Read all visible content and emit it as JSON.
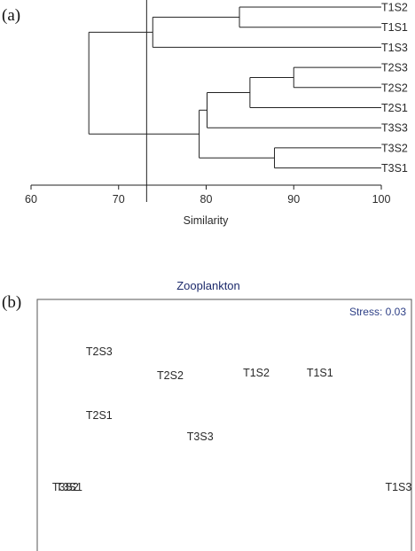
{
  "colors": {
    "ink": "#222222",
    "mds_title": "#1c2a6b",
    "stress": "#2d3f86"
  },
  "chart_data": [
    {
      "type": "dendrogram",
      "panel_label": "(a)",
      "xlabel": "Similarity",
      "xlim": [
        60,
        100
      ],
      "xticks": [
        "60",
        "70",
        "80",
        "90",
        "100"
      ],
      "cut_similarity": 73.2,
      "leaves": [
        "T1S2",
        "T1S1",
        "T1S3",
        "T2S3",
        "T2S2",
        "T2S1",
        "T3S3",
        "T3S2",
        "T3S1"
      ],
      "merges": [
        {
          "a": "T1S2",
          "b": "T1S1",
          "similarity": 83.8,
          "id": "c1"
        },
        {
          "a": "c1",
          "b": "T1S3",
          "similarity": 73.9,
          "id": "c2"
        },
        {
          "a": "T2S3",
          "b": "T2S2",
          "similarity": 90.0,
          "id": "c3"
        },
        {
          "a": "c3",
          "b": "T2S1",
          "similarity": 85.0,
          "id": "c4"
        },
        {
          "a": "c4",
          "b": "T3S3",
          "similarity": 80.1,
          "id": "c5"
        },
        {
          "a": "T3S2",
          "b": "T3S1",
          "similarity": 87.8,
          "id": "c6"
        },
        {
          "a": "c5",
          "b": "c6",
          "similarity": 79.2,
          "id": "c7"
        },
        {
          "a": "c2",
          "b": "c7",
          "similarity": 66.6,
          "id": "c8"
        }
      ]
    },
    {
      "type": "scatter",
      "panel_label": "(b)",
      "title": "Zooplankton",
      "stress": "Stress: 0.03",
      "points": [
        {
          "label": "T2S3",
          "x": 0.13,
          "y": 0.21
        },
        {
          "label": "T2S2",
          "x": 0.32,
          "y": 0.3
        },
        {
          "label": "T1S2",
          "x": 0.55,
          "y": 0.29
        },
        {
          "label": "T1S1",
          "x": 0.72,
          "y": 0.29
        },
        {
          "label": "T2S1",
          "x": 0.13,
          "y": 0.45
        },
        {
          "label": "T3S3",
          "x": 0.4,
          "y": 0.53
        },
        {
          "label": "T3S2",
          "x": 0.04,
          "y": 0.72
        },
        {
          "label": "T3S1",
          "x": 0.05,
          "y": 0.72
        },
        {
          "label": "T1S3",
          "x": 0.93,
          "y": 0.72
        }
      ]
    }
  ]
}
